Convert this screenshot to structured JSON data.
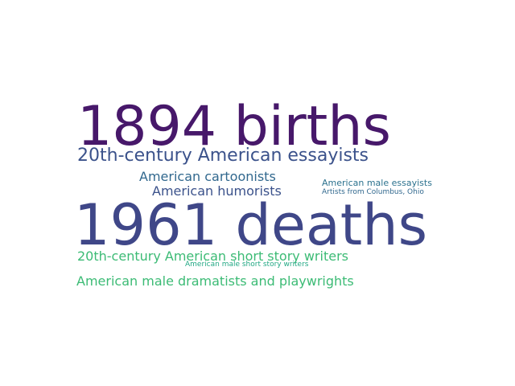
{
  "word_cloud": {
    "words": [
      {
        "text": "1894 births",
        "color": "#47186a"
      },
      {
        "text": "1961 deaths",
        "color": "#3f4788"
      },
      {
        "text": "20th-century American essayists",
        "color": "#3b528b"
      },
      {
        "text": "American cartoonists",
        "color": "#31688e"
      },
      {
        "text": "American humorists",
        "color": "#3b528b"
      },
      {
        "text": "American male essayists",
        "color": "#2c728e"
      },
      {
        "text": "Artists from Columbus, Ohio",
        "color": "#31688e"
      },
      {
        "text": "20th-century American short story writers",
        "color": "#3cbb75"
      },
      {
        "text": "American male short story writers",
        "color": "#22a884"
      },
      {
        "text": "American male dramatists and playwrights",
        "color": "#3cbb75"
      }
    ]
  }
}
